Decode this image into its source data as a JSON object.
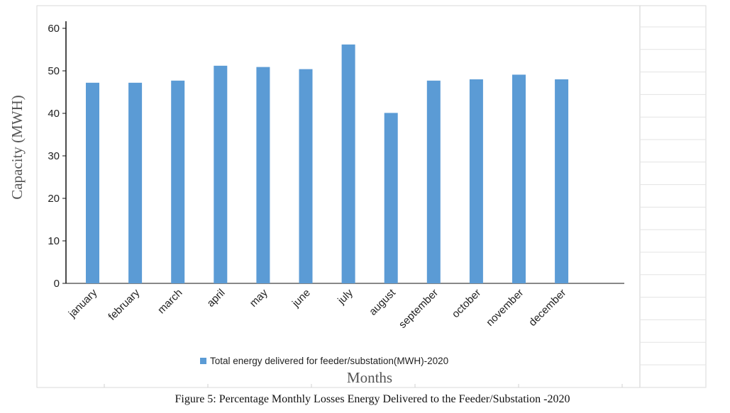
{
  "chart_data": {
    "type": "bar",
    "categories": [
      "january",
      "february",
      "march",
      "april",
      "may",
      "june",
      "july",
      "august",
      "september",
      "october",
      "november",
      "december"
    ],
    "series": [
      {
        "name": "Total energy delivered  for feeder/substation(MWH)-2020",
        "values": [
          47.2,
          47.2,
          47.7,
          51.2,
          50.9,
          50.4,
          56.2,
          40.1,
          47.7,
          48.0,
          49.1,
          48.0
        ],
        "color": "#5b9bd5"
      }
    ],
    "title": "",
    "xlabel": "Months",
    "ylabel": "Capacity (MWH)",
    "ylim": [
      0,
      60
    ],
    "yticks": [
      0,
      10,
      20,
      30,
      40,
      50,
      60
    ],
    "grid": false,
    "legend": "bottom-center"
  },
  "caption": "Figure 5: Percentage Monthly Losses Energy Delivered to the Feeder/Substation -2020"
}
